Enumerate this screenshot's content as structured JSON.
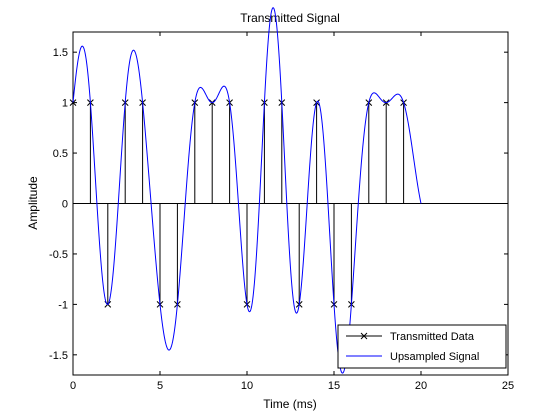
{
  "chart_data": {
    "type": "line",
    "title": "Transmitted Signal",
    "xlabel": "Time (ms)",
    "ylabel": "Amplitude",
    "xlim": [
      0,
      25
    ],
    "ylim": [
      -1.7,
      1.7
    ],
    "xticks": [
      0,
      5,
      10,
      15,
      20,
      25
    ],
    "yticks": [
      -1.5,
      -1,
      -0.5,
      0,
      0.5,
      1,
      1.5
    ],
    "grid": false,
    "legend_position": "bottom-right",
    "series": [
      {
        "name": "Transmitted Data",
        "style": "stem",
        "marker": "x",
        "color": "#000000",
        "x": [
          0,
          1,
          2,
          3,
          4,
          5,
          6,
          7,
          8,
          9,
          10,
          11,
          12,
          13,
          14,
          15,
          16,
          17,
          18,
          19
        ],
        "y": [
          1,
          1,
          -1,
          1,
          1,
          -1,
          -1,
          1,
          1,
          1,
          -1,
          1,
          1,
          -1,
          1,
          -1,
          -1,
          1,
          1,
          1
        ]
      },
      {
        "name": "Upsampled Signal",
        "style": "line",
        "color": "#0000ff"
      }
    ]
  }
}
